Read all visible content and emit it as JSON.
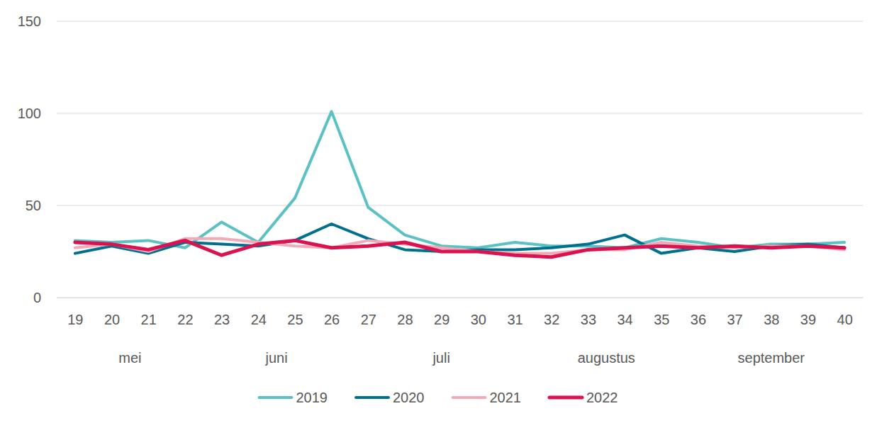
{
  "chart_data": {
    "type": "line",
    "x": [
      19,
      20,
      21,
      22,
      23,
      24,
      25,
      26,
      27,
      28,
      29,
      30,
      31,
      32,
      33,
      34,
      35,
      36,
      37,
      38,
      39,
      40
    ],
    "xlim": [
      18.5,
      40.5
    ],
    "xticks": [
      19,
      20,
      21,
      22,
      23,
      24,
      25,
      26,
      27,
      28,
      29,
      30,
      31,
      32,
      33,
      34,
      35,
      36,
      37,
      38,
      39,
      40
    ],
    "ylim": [
      0,
      150
    ],
    "yticks": [
      0,
      50,
      100,
      150
    ],
    "grid": true,
    "legend": "bottom",
    "annotations": [
      {
        "text": "mei",
        "x": 20.5
      },
      {
        "text": "juni",
        "x": 24.5
      },
      {
        "text": "juli",
        "x": 29
      },
      {
        "text": "augustus",
        "x": 33.5
      },
      {
        "text": "september",
        "x": 38
      }
    ],
    "series": [
      {
        "name": "2019",
        "color": "#5bc1c3",
        "values": [
          31,
          30,
          31,
          27,
          41,
          30,
          54,
          101,
          49,
          34,
          28,
          27,
          30,
          28,
          28,
          27,
          32,
          30,
          27,
          29,
          29,
          30
        ]
      },
      {
        "name": "2020",
        "color": "#00708f",
        "values": [
          24,
          28,
          24,
          30,
          29,
          28,
          31,
          40,
          32,
          26,
          25,
          26,
          26,
          27,
          29,
          34,
          24,
          27,
          25,
          28,
          29,
          27
        ]
      },
      {
        "name": "2021",
        "color": "#f2a9b8",
        "values": [
          27,
          29,
          25,
          32,
          32,
          30,
          28,
          27,
          31,
          29,
          27,
          25,
          24,
          24,
          26,
          26,
          30,
          28,
          27,
          28,
          28,
          26
        ]
      },
      {
        "name": "2022",
        "color": "#d9134f",
        "values": [
          30,
          29,
          26,
          31,
          23,
          29,
          31,
          27,
          28,
          30,
          25,
          25,
          23,
          22,
          26,
          27,
          28,
          27,
          28,
          27,
          28,
          27
        ]
      }
    ]
  }
}
